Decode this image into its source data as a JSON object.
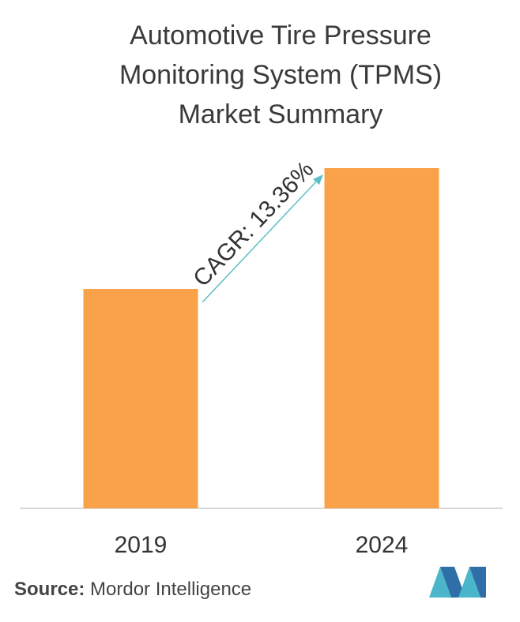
{
  "chart_data": {
    "type": "bar",
    "title": "Automotive Tire Pressure Monitoring System (TPMS) Market Summary",
    "categories": [
      "2019",
      "2024"
    ],
    "values": [
      64.5,
      100
    ],
    "color": "#f9a24a",
    "annotation": "CAGR: 13.36%",
    "source_label": "Source:",
    "source": "Mordor Intelligence"
  }
}
